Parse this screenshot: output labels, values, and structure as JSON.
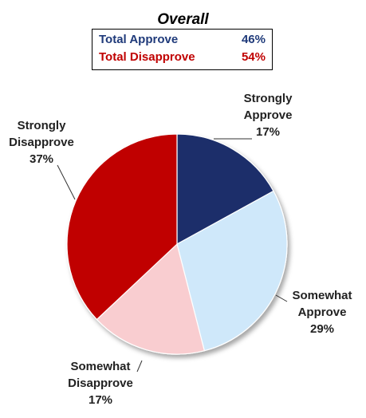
{
  "chart_data": {
    "type": "pie",
    "title": "Overall",
    "summary": [
      {
        "label": "Total Approve",
        "value": "46%",
        "color": "#1f3a7a"
      },
      {
        "label": "Total Disapprove",
        "value": "54%",
        "color": "#c00000"
      }
    ],
    "slices": [
      {
        "name": "Strongly Approve",
        "label_lines": [
          "Strongly",
          "Approve"
        ],
        "value": 17,
        "value_label": "17%",
        "color": "#1b2f6b"
      },
      {
        "name": "Somewhat Approve",
        "label_lines": [
          "Somewhat",
          "Approve"
        ],
        "value": 29,
        "value_label": "29%",
        "color": "#cfe8fa"
      },
      {
        "name": "Somewhat Disapprove",
        "label_lines": [
          "Somewhat",
          "Disapprove"
        ],
        "value": 17,
        "value_label": "17%",
        "color": "#f9cdd0"
      },
      {
        "name": "Strongly Disapprove",
        "label_lines": [
          "Strongly",
          "Disapprove"
        ],
        "value": 37,
        "value_label": "37%",
        "color": "#c00000"
      }
    ],
    "start_angle_deg": 0,
    "direction": "clockwise"
  }
}
